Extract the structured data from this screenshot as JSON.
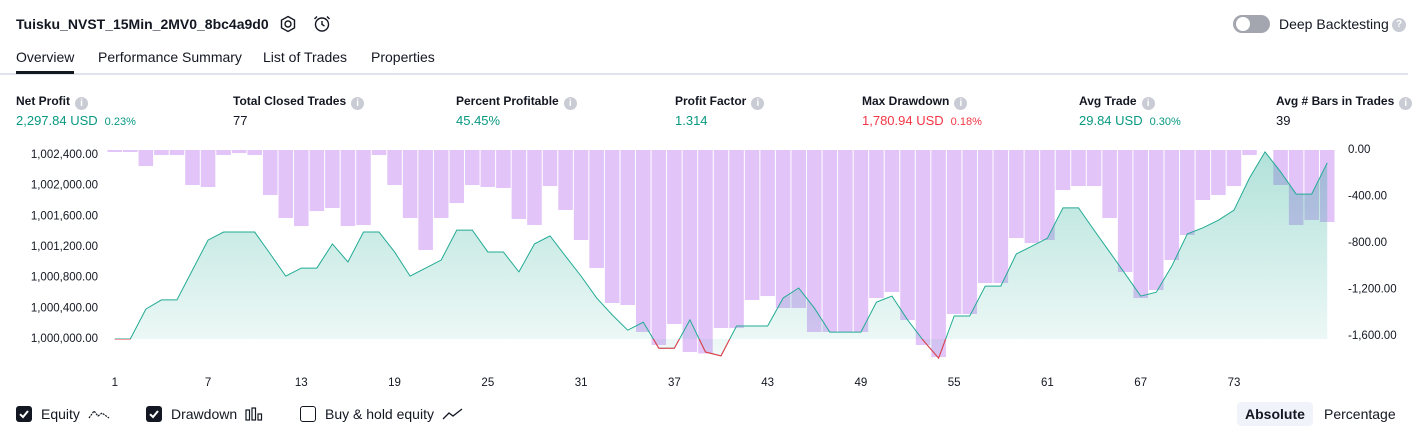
{
  "header": {
    "title": "Tuisku_NVST_15Min_2MV0_8bc4a9d0",
    "toggle_label": "Deep Backtesting",
    "toggle_on": false
  },
  "tabs": {
    "items": [
      "Overview",
      "Performance Summary",
      "List of Trades",
      "Properties"
    ],
    "active": 0
  },
  "metrics": [
    {
      "label": "Net Profit",
      "value": "2,297.84 USD",
      "change": "0.23%",
      "color": "#089981"
    },
    {
      "label": "Total Closed Trades",
      "value": "77",
      "color": "#131722"
    },
    {
      "label": "Percent Profitable",
      "value": "45.45%",
      "color": "#089981"
    },
    {
      "label": "Profit Factor",
      "value": "1.314",
      "color": "#089981"
    },
    {
      "label": "Max Drawdown",
      "value": "1,780.94 USD",
      "change": "0.18%",
      "color": "#f23645"
    },
    {
      "label": "Avg Trade",
      "value": "29.84 USD",
      "change": "0.30%",
      "color": "#089981"
    },
    {
      "label": "Avg # Bars in Trades",
      "value": "39",
      "color": "#131722"
    }
  ],
  "chart_data": {
    "type": "combo",
    "x": [
      1,
      2,
      3,
      4,
      5,
      6,
      7,
      8,
      9,
      10,
      11,
      12,
      13,
      14,
      15,
      16,
      17,
      18,
      19,
      20,
      21,
      22,
      23,
      24,
      25,
      26,
      27,
      28,
      29,
      30,
      31,
      32,
      33,
      34,
      35,
      36,
      37,
      38,
      39,
      40,
      41,
      42,
      43,
      44,
      45,
      46,
      47,
      48,
      49,
      50,
      51,
      52,
      53,
      54,
      55,
      56,
      57,
      58,
      59,
      60,
      61,
      62,
      63,
      64,
      65,
      66,
      67,
      68,
      69,
      70,
      71,
      72,
      73,
      74,
      75,
      76,
      77,
      78,
      79
    ],
    "xlim": [
      0.5,
      79.5
    ],
    "xticks": [
      1,
      7,
      13,
      19,
      25,
      31,
      37,
      43,
      49,
      55,
      61,
      67,
      73
    ],
    "ylim": [
      999726,
      1002465
    ],
    "yticks": [
      {
        "value": 1000000,
        "label": "1,000,000.00"
      },
      {
        "value": 1000400,
        "label": "1,000,400.00"
      },
      {
        "value": 1000800,
        "label": "1,000,800.00"
      },
      {
        "value": 1001200,
        "label": "1,001,200.00"
      },
      {
        "value": 1001600,
        "label": "1,001,600.00"
      },
      {
        "value": 1002000,
        "label": "1,002,000.00"
      },
      {
        "value": 1002400,
        "label": "1,002,400.00"
      }
    ],
    "y2lim": [
      -1806,
      0
    ],
    "y2ticks": [
      {
        "value": 0,
        "label": "0.00"
      },
      {
        "value": -400,
        "label": "-400.00"
      },
      {
        "value": -800,
        "label": "-800.00"
      },
      {
        "value": -1200,
        "label": "-1,200.00"
      },
      {
        "value": -1600,
        "label": "-1,600.00"
      }
    ],
    "series": [
      {
        "name": "Equity",
        "type": "area",
        "color": "#22ab94",
        "loss_color": "#f23645",
        "checked": true,
        "values": [
          1000000,
          1000000,
          1000390,
          1000510,
          1000510,
          1000900,
          1001290,
          1001395,
          1001395,
          1001395,
          1001110,
          1000820,
          1000925,
          1000925,
          1001240,
          1001005,
          1001395,
          1001395,
          1001135,
          1000820,
          1000925,
          1001030,
          1001420,
          1001420,
          1001135,
          1001135,
          1000875,
          1001240,
          1001345,
          1001080,
          1000820,
          1000535,
          1000315,
          1000115,
          1000220,
          999880,
          999880,
          1000250,
          999830,
          999780,
          1000170,
          1000170,
          1000170,
          1000535,
          1000665,
          1000405,
          1000090,
          1000090,
          1000090,
          1000480,
          1000560,
          1000250,
          999985,
          999750,
          1000300,
          1000300,
          1000690,
          1000690,
          1001110,
          1001210,
          1001315,
          1001710,
          1001710,
          1001420,
          1001135,
          1000850,
          1000560,
          1000610,
          1000950,
          1001370,
          1001450,
          1001550,
          1001680,
          1002100,
          1002440,
          1002180,
          1001890,
          1001890,
          1002297.84
        ]
      },
      {
        "name": "Drawdown",
        "type": "bar",
        "axis": "y2",
        "color": "#ce9cf5",
        "checked": true,
        "values": [
          -17,
          -17,
          -138,
          -43,
          -43,
          -301,
          -318,
          -43,
          -26,
          -43,
          -387,
          -585,
          -654,
          -525,
          -499,
          -654,
          -645,
          -43,
          -301,
          -585,
          -860,
          -585,
          -456,
          -301,
          -318,
          -327,
          -593,
          -645,
          -310,
          -516,
          -774,
          -1015,
          -1316,
          -1333,
          -1565,
          -1677,
          -1496,
          -1737,
          -1750,
          -1531,
          -1531,
          -1290,
          -1256,
          -1359,
          -1359,
          -1565,
          -1565,
          -1565,
          -1565,
          -1273,
          -1221,
          -1462,
          -1677,
          -1780.94,
          -1410,
          -1410,
          -1144,
          -1144,
          -757,
          -800,
          -774,
          -344,
          -310,
          -310,
          -585,
          -1049,
          -1273,
          -1204,
          -946,
          -731,
          -430,
          -387,
          -310,
          -43,
          0,
          -301,
          -645,
          -602,
          -619
        ]
      }
    ]
  },
  "controls": {
    "extra_option": {
      "name": "Buy & hold equity",
      "checked": false
    },
    "scale_modes": [
      "Absolute",
      "Percentage"
    ],
    "active_scale": 0
  }
}
